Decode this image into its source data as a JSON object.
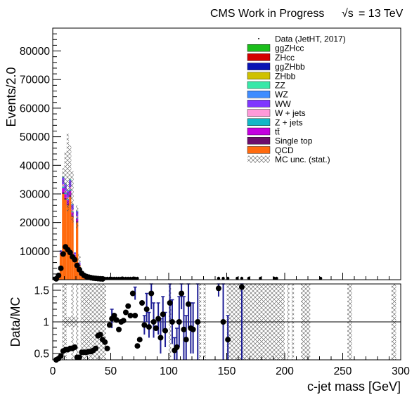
{
  "header": {
    "title": "CMS Work in Progress",
    "energy_symbol": "√s",
    "energy_value": "= 13 TeV"
  },
  "colors": {
    "QCD": "#ff6a0e",
    "Single top": "#6b0d6b",
    "tt": "#c400e0",
    "Z + jets": "#12b7c7",
    "W + jets": "#ff9ad9",
    "WW": "#7f37ff",
    "WZ": "#3f8cff",
    "ZZ": "#37e8a8",
    "ZHbb": "#cfc100",
    "ggZHbb": "#0a14b4",
    "ZHcc": "#d20000",
    "ggZHcc": "#1bbe1b",
    "data": "#000000",
    "ratio_err": "#1e1e96"
  },
  "chart_data": [
    {
      "type": "bar",
      "panel": "main",
      "ylabel": "Events/2.0",
      "xlim": [
        0,
        300
      ],
      "ylim": [
        0,
        88000
      ],
      "yticks": [
        10000,
        20000,
        30000,
        40000,
        50000,
        60000,
        70000,
        80000
      ],
      "ytick_labels": [
        "10000",
        "20000",
        "30000",
        "40000",
        "50000",
        "60000",
        "70000",
        "80000"
      ],
      "bin_width": 2,
      "bin_starts": [
        0,
        2,
        4,
        6,
        8,
        10,
        12,
        14,
        16,
        18,
        20,
        22,
        24,
        26,
        28,
        30,
        32,
        34,
        36,
        38,
        40,
        42,
        44,
        46,
        48,
        50,
        52,
        54,
        56,
        58,
        60,
        62,
        64,
        66,
        68,
        70,
        72
      ],
      "stack": [
        {
          "name": "QCD",
          "values": [
            0,
            200,
            2000,
            9000,
            30000,
            28000,
            26000,
            29000,
            22000,
            8000,
            20000,
            5000,
            1200,
            500,
            300,
            200,
            120,
            100,
            80,
            70,
            60,
            50,
            45,
            40,
            35,
            30,
            28,
            25,
            22,
            20,
            18,
            16,
            14,
            12,
            10,
            8,
            6
          ]
        },
        {
          "name": "Single top",
          "values": [
            0,
            2,
            20,
            100,
            600,
            550,
            500,
            600,
            450,
            150,
            400,
            100,
            25,
            12,
            8,
            5,
            4,
            3,
            2,
            2,
            2,
            1,
            1,
            1,
            1,
            1,
            1,
            1,
            0,
            0,
            0,
            0,
            0,
            0,
            0,
            0,
            0
          ]
        },
        {
          "name": "tt",
          "values": [
            0,
            5,
            60,
            300,
            1500,
            1400,
            1300,
            1500,
            1100,
            400,
            1000,
            250,
            60,
            30,
            20,
            12,
            10,
            8,
            6,
            5,
            4,
            3,
            3,
            2,
            2,
            2,
            2,
            1,
            1,
            1,
            1,
            1,
            1,
            0,
            0,
            0,
            0
          ]
        },
        {
          "name": "Z + jets",
          "values": [
            0,
            2,
            20,
            100,
            500,
            450,
            400,
            500,
            350,
            120,
            320,
            80,
            20,
            10,
            6,
            4,
            3,
            2,
            2,
            2,
            1,
            1,
            1,
            1,
            1,
            1,
            1,
            0,
            0,
            0,
            0,
            0,
            0,
            0,
            0,
            0,
            0
          ]
        },
        {
          "name": "W + jets",
          "values": [
            0,
            3,
            30,
            200,
            800,
            750,
            700,
            800,
            600,
            200,
            550,
            140,
            35,
            15,
            10,
            6,
            5,
            4,
            3,
            2,
            2,
            2,
            1,
            1,
            1,
            1,
            1,
            1,
            0,
            0,
            0,
            0,
            0,
            0,
            0,
            0,
            0
          ]
        },
        {
          "name": "WW",
          "values": [
            0,
            5,
            90,
            500,
            2200,
            2100,
            2000,
            2300,
            1700,
            600,
            1600,
            400,
            100,
            40,
            25,
            15,
            12,
            10,
            8,
            6,
            5,
            4,
            3,
            3,
            2,
            2,
            2,
            1,
            1,
            1,
            1,
            1,
            0,
            0,
            0,
            0,
            0
          ]
        },
        {
          "name": "WZ",
          "values": [
            0,
            2,
            15,
            80,
            300,
            280,
            260,
            300,
            220,
            80,
            200,
            50,
            12,
            5,
            3,
            2,
            2,
            1,
            1,
            1,
            1,
            1,
            0,
            0,
            0,
            0,
            0,
            0,
            0,
            0,
            0,
            0,
            0,
            0,
            0,
            0,
            0
          ]
        },
        {
          "name": "ZZ",
          "values": [
            0,
            1,
            8,
            40,
            150,
            140,
            130,
            150,
            110,
            40,
            100,
            25,
            6,
            3,
            2,
            1,
            1,
            1,
            1,
            0,
            0,
            0,
            0,
            0,
            0,
            0,
            0,
            0,
            0,
            0,
            0,
            0,
            0,
            0,
            0,
            0,
            0
          ]
        },
        {
          "name": "ZHbb",
          "values": [
            0,
            0,
            2,
            10,
            40,
            38,
            35,
            40,
            30,
            10,
            28,
            7,
            2,
            1,
            0,
            0,
            0,
            0,
            0,
            0,
            0,
            0,
            0,
            0,
            0,
            0,
            0,
            0,
            0,
            0,
            0,
            0,
            0,
            0,
            0,
            0,
            0
          ]
        },
        {
          "name": "ggZHbb",
          "values": [
            0,
            0,
            1,
            5,
            20,
            19,
            18,
            20,
            15,
            5,
            14,
            3,
            1,
            0,
            0,
            0,
            0,
            0,
            0,
            0,
            0,
            0,
            0,
            0,
            0,
            0,
            0,
            0,
            0,
            0,
            0,
            0,
            0,
            0,
            0,
            0,
            0
          ]
        },
        {
          "name": "ZHcc",
          "values": [
            0,
            0,
            1,
            5,
            20,
            19,
            18,
            20,
            15,
            5,
            14,
            3,
            1,
            0,
            0,
            0,
            0,
            0,
            0,
            0,
            0,
            0,
            0,
            0,
            0,
            0,
            0,
            0,
            0,
            0,
            0,
            0,
            0,
            0,
            0,
            0,
            0
          ]
        },
        {
          "name": "ggZHcc",
          "values": [
            0,
            0,
            0,
            2,
            8,
            8,
            7,
            8,
            6,
            2,
            6,
            1,
            0,
            0,
            0,
            0,
            0,
            0,
            0,
            0,
            0,
            0,
            0,
            0,
            0,
            0,
            0,
            0,
            0,
            0,
            0,
            0,
            0,
            0,
            0,
            0,
            0
          ]
        }
      ],
      "mc_unc": [
        {
          "x": 8,
          "lo": 33000,
          "hi": 39000
        },
        {
          "x": 10,
          "lo": 30000,
          "hi": 45000
        },
        {
          "x": 12,
          "lo": 24000,
          "hi": 51000
        },
        {
          "x": 14,
          "lo": 28000,
          "hi": 47000
        },
        {
          "x": 16,
          "lo": 20000,
          "hi": 38000
        },
        {
          "x": 20,
          "lo": 18000,
          "hi": 26000
        },
        {
          "x": 22,
          "lo": 3000,
          "hi": 9000
        }
      ],
      "data": {
        "name": "Data (JetHT, 2017)",
        "points": [
          [
            1,
            0
          ],
          [
            3,
            300
          ],
          [
            5,
            1500
          ],
          [
            7,
            4000
          ],
          [
            9,
            9000
          ],
          [
            11,
            11500
          ],
          [
            13,
            10500
          ],
          [
            15,
            9500
          ],
          [
            17,
            8000
          ],
          [
            19,
            7000
          ],
          [
            21,
            5000
          ],
          [
            23,
            3500
          ],
          [
            25,
            2200
          ],
          [
            27,
            1500
          ],
          [
            29,
            1100
          ],
          [
            31,
            900
          ],
          [
            33,
            700
          ],
          [
            35,
            550
          ],
          [
            37,
            450
          ],
          [
            39,
            380
          ],
          [
            41,
            320
          ],
          [
            43,
            280
          ],
          [
            45,
            240
          ],
          [
            47,
            200
          ],
          [
            49,
            180
          ],
          [
            51,
            160
          ],
          [
            53,
            140
          ],
          [
            55,
            130
          ],
          [
            57,
            120
          ],
          [
            59,
            110
          ],
          [
            61,
            100
          ],
          [
            63,
            90
          ],
          [
            65,
            80
          ],
          [
            67,
            70
          ],
          [
            69,
            60
          ],
          [
            71,
            55
          ],
          [
            73,
            50
          ],
          [
            143,
            120
          ],
          [
            147,
            110
          ],
          [
            151,
            100
          ],
          [
            159,
            90
          ],
          [
            163,
            90
          ],
          [
            169,
            80
          ],
          [
            179,
            80
          ],
          [
            191,
            70
          ],
          [
            193,
            70
          ],
          [
            231,
            60
          ]
        ]
      },
      "legend": {
        "placement": "top-right",
        "entries": [
          "Data (JetHT, 2017)",
          "ggZHcc",
          "ZHcc",
          "ggZHbb",
          "ZHbb",
          "ZZ",
          "WZ",
          "WW",
          "W + jets",
          "Z + jets",
          "tt̄",
          "Single top",
          "QCD",
          "MC unc. (stat.)"
        ]
      }
    },
    {
      "type": "scatter",
      "panel": "ratio",
      "ylabel": "Data/MC",
      "xlabel": "c-jet mass [GeV]",
      "xlim": [
        0,
        300
      ],
      "ylim": [
        0.4,
        1.6
      ],
      "yticks": [
        0.5,
        1,
        1.5
      ],
      "ytick_labels": [
        "0.5",
        "1",
        "1.5"
      ],
      "xticks": [
        0,
        50,
        100,
        150,
        200,
        250,
        300
      ],
      "xtick_labels": [
        "0",
        "50",
        "100",
        "150",
        "200",
        "250",
        "300"
      ],
      "reference_line": 1,
      "points": [
        [
          3,
          0.4
        ],
        [
          5,
          0.42
        ],
        [
          7,
          0.46
        ],
        [
          9,
          0.54
        ],
        [
          11,
          0.56
        ],
        [
          13,
          0.56
        ],
        [
          15,
          0.58
        ],
        [
          17,
          0.58
        ],
        [
          19,
          0.6
        ],
        [
          21,
          0.44
        ],
        [
          23,
          0.44
        ],
        [
          25,
          0.52
        ],
        [
          27,
          0.52
        ],
        [
          29,
          0.52
        ],
        [
          31,
          0.53
        ],
        [
          33,
          0.53
        ],
        [
          35,
          0.55
        ],
        [
          37,
          0.58
        ],
        [
          39,
          0.78
        ],
        [
          41,
          0.8
        ],
        [
          43,
          0.72
        ],
        [
          45,
          0.68
        ],
        [
          47,
          0.58
        ],
        [
          49,
          0.95
        ],
        [
          51,
          1.05
        ],
        [
          53,
          1.1
        ],
        [
          55,
          1.03
        ],
        [
          57,
          0.88
        ],
        [
          59,
          1.0
        ],
        [
          61,
          1.02
        ],
        [
          63,
          1.15
        ],
        [
          65,
          1.25
        ],
        [
          67,
          1.1
        ],
        [
          69,
          1.45
        ],
        [
          71,
          1.1
        ],
        [
          73,
          0.62
        ],
        [
          75,
          0.72
        ],
        [
          77,
          1.3
        ],
        [
          79,
          0.95
        ],
        [
          81,
          1.2
        ],
        [
          83,
          0.92
        ],
        [
          85,
          1.45
        ],
        [
          87,
          1.0
        ],
        [
          89,
          0.9
        ],
        [
          91,
          1.05
        ],
        [
          93,
          0.75
        ],
        [
          95,
          1.12
        ],
        [
          97,
          0.86
        ],
        [
          101,
          1.3
        ],
        [
          103,
          1.0
        ],
        [
          105,
          0.55
        ],
        [
          107,
          0.6
        ],
        [
          109,
          1.0
        ],
        [
          111,
          1.45
        ],
        [
          113,
          0.88
        ],
        [
          115,
          0.72
        ],
        [
          117,
          1.28
        ],
        [
          119,
          0.9
        ],
        [
          121,
          0.88
        ],
        [
          125,
          1.0
        ],
        [
          143,
          1.53
        ],
        [
          147,
          1.0
        ],
        [
          151,
          0.72
        ],
        [
          163,
          1.55
        ]
      ],
      "errors": [
        {
          "x": 51,
          "lo": 0.9,
          "hi": 1.2
        },
        {
          "x": 71,
          "lo": 1.35,
          "hi": 1.55
        },
        {
          "x": 79,
          "lo": 0.8,
          "hi": 1.1
        },
        {
          "x": 81,
          "lo": 1.0,
          "hi": 1.45
        },
        {
          "x": 83,
          "lo": 0.75,
          "hi": 1.15
        },
        {
          "x": 85,
          "lo": 1.2,
          "hi": 1.6
        },
        {
          "x": 87,
          "lo": 0.75,
          "hi": 1.3
        },
        {
          "x": 91,
          "lo": 0.8,
          "hi": 1.3
        },
        {
          "x": 93,
          "lo": 0.5,
          "hi": 1.05
        },
        {
          "x": 95,
          "lo": 0.85,
          "hi": 1.4
        },
        {
          "x": 97,
          "lo": 0.6,
          "hi": 1.15
        },
        {
          "x": 101,
          "lo": 1.0,
          "hi": 1.6
        },
        {
          "x": 103,
          "lo": 0.65,
          "hi": 1.35
        },
        {
          "x": 105,
          "lo": 0.4,
          "hi": 0.75
        },
        {
          "x": 107,
          "lo": 0.4,
          "hi": 0.9
        },
        {
          "x": 109,
          "lo": 0.6,
          "hi": 1.4
        },
        {
          "x": 111,
          "lo": 1.2,
          "hi": 1.6
        },
        {
          "x": 113,
          "lo": 0.4,
          "hi": 1.4
        },
        {
          "x": 115,
          "lo": 0.4,
          "hi": 1.1
        },
        {
          "x": 117,
          "lo": 0.9,
          "hi": 1.6
        },
        {
          "x": 119,
          "lo": 0.5,
          "hi": 1.3
        },
        {
          "x": 121,
          "lo": 0.5,
          "hi": 1.3
        },
        {
          "x": 125,
          "lo": 0.4,
          "hi": 1.6
        },
        {
          "x": 143,
          "lo": 1.4,
          "hi": 1.6
        },
        {
          "x": 147,
          "lo": 0.4,
          "hi": 1.6
        },
        {
          "x": 151,
          "lo": 0.4,
          "hi": 1.1
        },
        {
          "x": 163,
          "lo": 0.4,
          "hi": 1.6
        }
      ],
      "mc_unc_bins": [
        [
          8,
          12
        ],
        [
          16,
          18
        ],
        [
          20,
          22
        ],
        [
          24,
          46
        ],
        [
          100,
          102
        ],
        [
          126,
          128
        ],
        [
          130,
          132
        ],
        [
          150,
          160
        ],
        [
          160,
          200
        ],
        [
          202,
          204
        ],
        [
          206,
          208
        ],
        [
          214,
          222
        ],
        [
          254,
          258
        ],
        [
          292,
          296
        ]
      ]
    }
  ]
}
